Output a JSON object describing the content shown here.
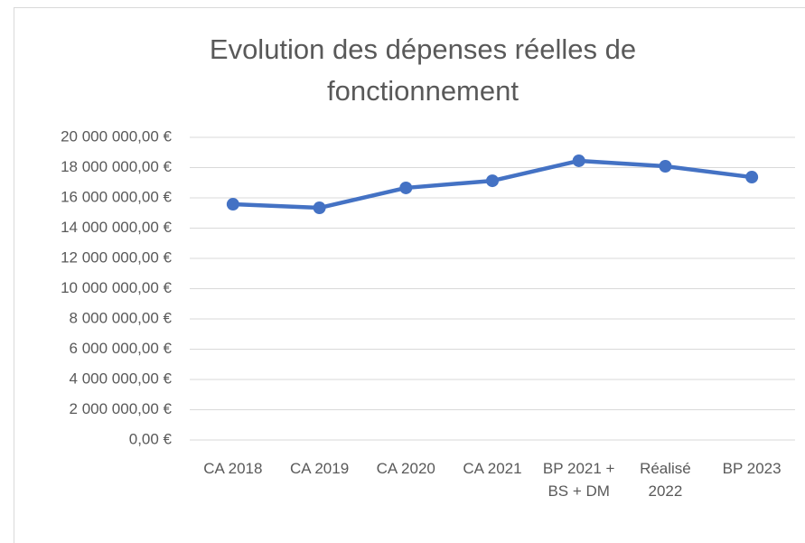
{
  "chart_data": {
    "type": "line",
    "title": "Evolution des dépenses réelles de fonctionnement",
    "categories": [
      "CA 2018",
      "CA 2019",
      "CA 2020",
      "CA 2021",
      "BP 2021 + BS + DM",
      "Réalisé 2022",
      "BP 2023"
    ],
    "values": [
      15580000,
      15340000,
      16660000,
      17130000,
      18450000,
      18090000,
      17370000
    ],
    "color": "#4472c4",
    "ylim": [
      0,
      20000000
    ],
    "yticks": [
      {
        "value": 0,
        "label": "0,00 €"
      },
      {
        "value": 2000000,
        "label": "2 000 000,00 €"
      },
      {
        "value": 4000000,
        "label": "4 000 000,00 €"
      },
      {
        "value": 6000000,
        "label": "6 000 000,00 €"
      },
      {
        "value": 8000000,
        "label": "8 000 000,00 €"
      },
      {
        "value": 10000000,
        "label": "10 000 000,00 €"
      },
      {
        "value": 12000000,
        "label": "12 000 000,00 €"
      },
      {
        "value": 14000000,
        "label": "14 000 000,00 €"
      },
      {
        "value": 16000000,
        "label": "16 000 000,00 €"
      },
      {
        "value": 18000000,
        "label": "18 000 000,00 €"
      },
      {
        "value": 20000000,
        "label": "20 000 000,00 €"
      }
    ],
    "grid": true
  }
}
